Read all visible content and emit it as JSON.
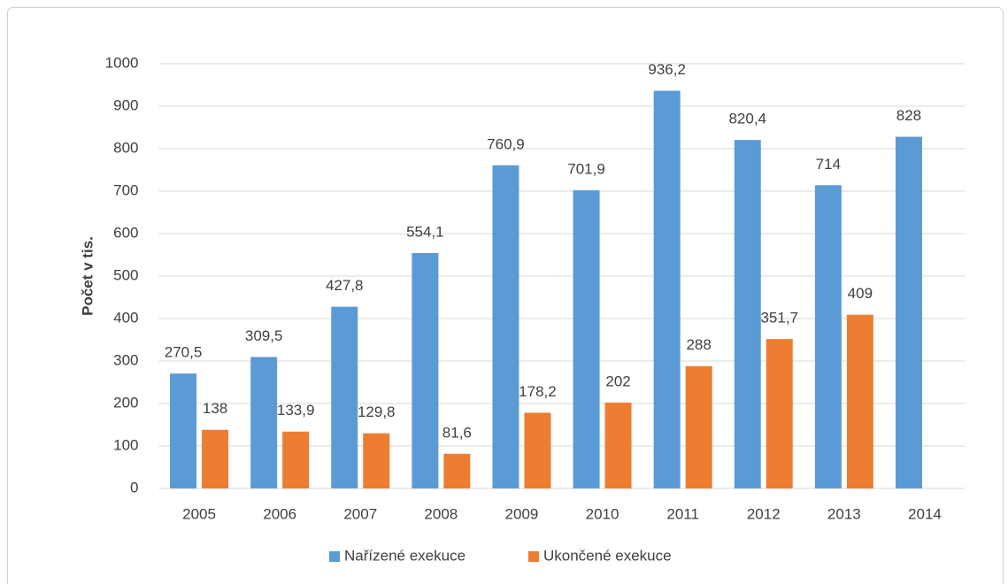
{
  "chart_data": {
    "type": "bar",
    "y_label": "Počet v tis.",
    "categories": [
      "2005",
      "2006",
      "2007",
      "2008",
      "2009",
      "2010",
      "2011",
      "2012",
      "2013",
      "2014"
    ],
    "series": [
      {
        "name": "Nařízené exekuce",
        "color": "#5b9bd5",
        "values": [
          270.5,
          309.5,
          427.8,
          554.1,
          760.9,
          701.9,
          936.2,
          820.4,
          714,
          828
        ],
        "value_labels": [
          "270,5",
          "309,5",
          "427,8",
          "554,1",
          "760,9",
          "701,9",
          "936,2",
          "820,4",
          "714",
          "828"
        ]
      },
      {
        "name": "Ukončené exekuce",
        "color": "#ed7d31",
        "values": [
          138,
          133.9,
          129.8,
          81.6,
          178.2,
          202,
          288,
          351.7,
          409,
          null
        ],
        "value_labels": [
          "138",
          "133,9",
          "129,8",
          "81,6",
          "178,2",
          "202",
          "288",
          "351,7",
          "409",
          null
        ]
      }
    ],
    "ylim": [
      0,
      1000
    ],
    "yticks": [
      0,
      100,
      200,
      300,
      400,
      500,
      600,
      700,
      800,
      900,
      1000
    ],
    "grid": true,
    "legend": "bottom"
  }
}
